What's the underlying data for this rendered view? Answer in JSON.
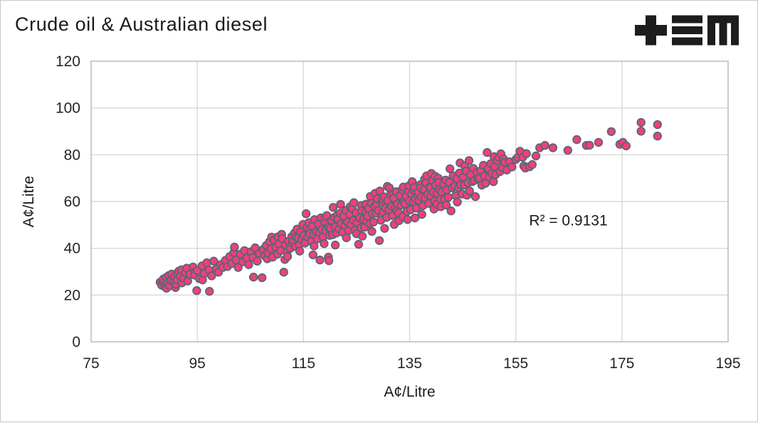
{
  "title": "Crude oil & Australian diesel",
  "logo": {
    "name": "tem-logo",
    "color": "#1d1d1b"
  },
  "chart_data": {
    "type": "scatter",
    "title": "Crude oil & Australian diesel",
    "xlabel": "A¢/Litre",
    "ylabel": "A¢/Litre",
    "xlim": [
      75,
      195
    ],
    "ylim": [
      0,
      120
    ],
    "xticks": [
      75,
      95,
      115,
      135,
      155,
      175,
      195
    ],
    "yticks": [
      0,
      20,
      40,
      60,
      80,
      100,
      120
    ],
    "grid": true,
    "legend": "none",
    "annotation": {
      "text": "R² = 0.9131",
      "x": 164.9,
      "y": 52
    },
    "marker": {
      "fill": "#F23E80",
      "stroke": "#5B6670",
      "radius": 5.3,
      "stroke_width": 1.8
    },
    "colors": {
      "gridline": "#D9D9D9",
      "plot_border": "#BFBFBF",
      "tick_text": "#262626",
      "axis_title_text": "#1A1A1A"
    },
    "points": [
      [
        88.0,
        25.5
      ],
      [
        88.3,
        24.2
      ],
      [
        88.5,
        25.9
      ],
      [
        88.6,
        26.8
      ],
      [
        88.9,
        23.5
      ],
      [
        89.1,
        27.5
      ],
      [
        89.2,
        22.9
      ],
      [
        89.4,
        25.0
      ],
      [
        89.6,
        28.3
      ],
      [
        89.8,
        24.0
      ],
      [
        90.0,
        26.2
      ],
      [
        90.2,
        29.0
      ],
      [
        90.5,
        25.8
      ],
      [
        90.8,
        27.9
      ],
      [
        90.9,
        23.2
      ],
      [
        91.0,
        24.6
      ],
      [
        91.2,
        26.5
      ],
      [
        91.3,
        29.1
      ],
      [
        91.5,
        30.2
      ],
      [
        91.8,
        28.0
      ],
      [
        92.0,
        30.8
      ],
      [
        92.1,
        25.2
      ],
      [
        92.4,
        27.2
      ],
      [
        92.8,
        29.5
      ],
      [
        93.0,
        31.5
      ],
      [
        93.2,
        26.0
      ],
      [
        93.6,
        28.8
      ],
      [
        94.2,
        32.0
      ],
      [
        94.6,
        30.0
      ],
      [
        94.9,
        21.9
      ],
      [
        97.3,
        21.6
      ],
      [
        94.5,
        28.5
      ],
      [
        95.0,
        30.5
      ],
      [
        95.4,
        27.0
      ],
      [
        95.9,
        32.5
      ],
      [
        96.0,
        26.5
      ],
      [
        96.3,
        29.2
      ],
      [
        96.8,
        33.8
      ],
      [
        97.2,
        30.8
      ],
      [
        97.7,
        28.2
      ],
      [
        98.1,
        34.5
      ],
      [
        98.6,
        31.2
      ],
      [
        99.0,
        29.8
      ],
      [
        99.4,
        33.0
      ],
      [
        99.8,
        31.8
      ],
      [
        100.3,
        34.8
      ],
      [
        100.7,
        32.2
      ],
      [
        101.1,
        36.5
      ],
      [
        101.5,
        33.5
      ],
      [
        101.9,
        38.2
      ],
      [
        102.0,
        40.5
      ],
      [
        102.3,
        35.0
      ],
      [
        102.7,
        31.8
      ],
      [
        103.1,
        37.5
      ],
      [
        103.5,
        34.2
      ],
      [
        103.9,
        39.0
      ],
      [
        104.3,
        35.8
      ],
      [
        104.7,
        33.0
      ],
      [
        105.1,
        38.5
      ],
      [
        105.5,
        36.0
      ],
      [
        105.6,
        27.7
      ],
      [
        105.9,
        40.2
      ],
      [
        106.3,
        34.5
      ],
      [
        106.7,
        37.8
      ],
      [
        107.2,
        27.4
      ],
      [
        107.4,
        39.5
      ],
      [
        107.7,
        36.8
      ],
      [
        108.0,
        41.2
      ],
      [
        108.2,
        35.5
      ],
      [
        108.3,
        38.0
      ],
      [
        108.6,
        42.8
      ],
      [
        108.9,
        39.8
      ],
      [
        109.0,
        44.8
      ],
      [
        109.2,
        36.2
      ],
      [
        109.5,
        43.5
      ],
      [
        109.8,
        40.5
      ],
      [
        110.1,
        37.5
      ],
      [
        110.2,
        44.9
      ],
      [
        110.4,
        42.0
      ],
      [
        110.7,
        39.0
      ],
      [
        110.9,
        46.0
      ],
      [
        111.0,
        44.2
      ],
      [
        111.3,
        29.8
      ],
      [
        111.5,
        35.2
      ],
      [
        111.6,
        41.5
      ],
      [
        111.9,
        38.5
      ],
      [
        112.0,
        36.5
      ],
      [
        112.2,
        43.0
      ],
      [
        112.5,
        40.0
      ],
      [
        112.8,
        45.0
      ],
      [
        112.9,
        42.2
      ],
      [
        113.1,
        43.2
      ],
      [
        113.3,
        46.5
      ],
      [
        113.5,
        40.8
      ],
      [
        113.6,
        44.9
      ],
      [
        113.8,
        48.2
      ],
      [
        114.0,
        44.5
      ],
      [
        114.2,
        41.5
      ],
      [
        114.3,
        38.8
      ],
      [
        114.5,
        47.0
      ],
      [
        114.7,
        43.8
      ],
      [
        114.9,
        50.2
      ],
      [
        115.1,
        45.5
      ],
      [
        115.3,
        42.2
      ],
      [
        115.5,
        54.8
      ],
      [
        115.6,
        48.8
      ],
      [
        115.8,
        44.8
      ],
      [
        116.0,
        51.0
      ],
      [
        116.1,
        47.9
      ],
      [
        116.2,
        46.2
      ],
      [
        116.5,
        43.0
      ],
      [
        116.7,
        49.5
      ],
      [
        116.8,
        37.2
      ],
      [
        116.9,
        45.8
      ],
      [
        117.0,
        41.0
      ],
      [
        117.1,
        52.3
      ],
      [
        117.4,
        47.2
      ],
      [
        117.6,
        44.0
      ],
      [
        117.8,
        50.5
      ],
      [
        118.0,
        46.8
      ],
      [
        118.1,
        35.0
      ],
      [
        118.3,
        53.0
      ],
      [
        118.5,
        48.0
      ],
      [
        118.7,
        44.8
      ],
      [
        118.9,
        42.0
      ],
      [
        119.0,
        51.5
      ],
      [
        119.1,
        53.2
      ],
      [
        119.2,
        47.5
      ],
      [
        119.4,
        54.0
      ],
      [
        119.7,
        49.0
      ],
      [
        119.7,
        36.2
      ],
      [
        119.8,
        34.7
      ],
      [
        119.9,
        45.5
      ],
      [
        120.1,
        48.5
      ],
      [
        120.3,
        51.8
      ],
      [
        120.5,
        45.8
      ],
      [
        120.6,
        57.5
      ],
      [
        120.8,
        53.2
      ],
      [
        121.0,
        49.2
      ],
      [
        121.0,
        41.4
      ],
      [
        121.2,
        46.5
      ],
      [
        121.4,
        54.2
      ],
      [
        121.5,
        52.5
      ],
      [
        121.7,
        48.2
      ],
      [
        121.9,
        55.0
      ],
      [
        122.0,
        58.8
      ],
      [
        122.1,
        50.5
      ],
      [
        122.4,
        46.8
      ],
      [
        122.6,
        53.8
      ],
      [
        122.8,
        49.8
      ],
      [
        123.0,
        56.2
      ],
      [
        123.1,
        44.5
      ],
      [
        123.3,
        51.2
      ],
      [
        123.5,
        47.5
      ],
      [
        123.7,
        54.5
      ],
      [
        123.8,
        57.8
      ],
      [
        124.0,
        50.2
      ],
      [
        124.2,
        57.0
      ],
      [
        124.4,
        52.0
      ],
      [
        124.5,
        59.5
      ],
      [
        124.7,
        47.8
      ],
      [
        124.9,
        55.2
      ],
      [
        125.0,
        46.2
      ],
      [
        125.1,
        51.0
      ],
      [
        125.4,
        41.7
      ],
      [
        125.6,
        53.0
      ],
      [
        125.8,
        48.8
      ],
      [
        125.9,
        58.3
      ],
      [
        126.0,
        56.0
      ],
      [
        126.1,
        45.2
      ],
      [
        126.3,
        52.2
      ],
      [
        126.5,
        49.0
      ],
      [
        126.7,
        55.5
      ],
      [
        126.8,
        58.9
      ],
      [
        126.9,
        51.5
      ],
      [
        127.1,
        53.8
      ],
      [
        127.3,
        57.0
      ],
      [
        127.5,
        50.5
      ],
      [
        127.6,
        62.2
      ],
      [
        127.8,
        59.2
      ],
      [
        127.9,
        47.2
      ],
      [
        128.0,
        54.8
      ],
      [
        128.2,
        51.2
      ],
      [
        128.4,
        58.0
      ],
      [
        128.5,
        63.5
      ],
      [
        128.7,
        55.0
      ],
      [
        128.8,
        58.9
      ],
      [
        128.9,
        61.2
      ],
      [
        129.1,
        56.2
      ],
      [
        129.3,
        43.3
      ],
      [
        129.4,
        64.5
      ],
      [
        129.6,
        52.0
      ],
      [
        129.8,
        59.8
      ],
      [
        129.9,
        61.0
      ],
      [
        130.0,
        55.5
      ],
      [
        130.2,
        62.0
      ],
      [
        130.3,
        48.5
      ],
      [
        130.5,
        57.2
      ],
      [
        130.7,
        53.2
      ],
      [
        130.8,
        66.5
      ],
      [
        130.9,
        60.5
      ],
      [
        131.1,
        56.5
      ],
      [
        131.2,
        65.8
      ],
      [
        131.4,
        63.0
      ],
      [
        131.6,
        58.0
      ],
      [
        131.8,
        54.0
      ],
      [
        131.9,
        62.9
      ],
      [
        132.0,
        61.5
      ],
      [
        132.1,
        50.2
      ],
      [
        132.3,
        57.5
      ],
      [
        132.5,
        64.2
      ],
      [
        132.6,
        56.1
      ],
      [
        132.7,
        59.0
      ],
      [
        132.9,
        55.2
      ],
      [
        133.0,
        51.8
      ],
      [
        133.2,
        62.5
      ],
      [
        133.4,
        58.5
      ],
      [
        133.6,
        65.0
      ],
      [
        133.7,
        53.5
      ],
      [
        133.8,
        66.2
      ],
      [
        133.9,
        60.0
      ],
      [
        134.1,
        59.0
      ],
      [
        134.3,
        62.2
      ],
      [
        134.5,
        55.8
      ],
      [
        134.6,
        52.3
      ],
      [
        134.8,
        64.5
      ],
      [
        134.9,
        66.8
      ],
      [
        135.0,
        60.2
      ],
      [
        135.2,
        56.5
      ],
      [
        135.4,
        63.2
      ],
      [
        135.5,
        68.5
      ],
      [
        135.7,
        59.8
      ],
      [
        135.8,
        64.8
      ],
      [
        135.9,
        66.0
      ],
      [
        136.0,
        53.0
      ],
      [
        136.1,
        61.2
      ],
      [
        136.3,
        57.2
      ],
      [
        136.5,
        62.8
      ],
      [
        136.6,
        64.0
      ],
      [
        136.8,
        60.5
      ],
      [
        137.0,
        67.2
      ],
      [
        137.1,
        65.9
      ],
      [
        137.2,
        62.0
      ],
      [
        137.3,
        54.5
      ],
      [
        137.5,
        58.2
      ],
      [
        137.7,
        65.2
      ],
      [
        137.8,
        69.5
      ],
      [
        137.9,
        61.5
      ],
      [
        138.1,
        68.0
      ],
      [
        138.2,
        71.0
      ],
      [
        138.4,
        63.0
      ],
      [
        138.6,
        59.2
      ],
      [
        138.8,
        66.2
      ],
      [
        138.9,
        65.9
      ],
      [
        139.0,
        62.5
      ],
      [
        139.1,
        72.0
      ],
      [
        139.3,
        69.0
      ],
      [
        139.5,
        64.0
      ],
      [
        139.6,
        56.8
      ],
      [
        139.7,
        60.2
      ],
      [
        139.8,
        70.8
      ],
      [
        139.9,
        67.0
      ],
      [
        140.1,
        58.9
      ],
      [
        140.2,
        63.5
      ],
      [
        140.4,
        70.0
      ],
      [
        140.5,
        68.2
      ],
      [
        140.6,
        65.0
      ],
      [
        140.8,
        61.0
      ],
      [
        140.9,
        57.8
      ],
      [
        141.1,
        64.2
      ],
      [
        141.4,
        67.5
      ],
      [
        141.6,
        61.0
      ],
      [
        141.8,
        69.2
      ],
      [
        141.9,
        58.5
      ],
      [
        142.0,
        65.0
      ],
      [
        142.3,
        61.8
      ],
      [
        142.5,
        68.2
      ],
      [
        142.6,
        74.0
      ],
      [
        142.8,
        56.0
      ],
      [
        143.0,
        65.8
      ],
      [
        143.2,
        71.0
      ],
      [
        143.5,
        66.5
      ],
      [
        143.7,
        62.5
      ],
      [
        143.9,
        69.8
      ],
      [
        144.0,
        59.8
      ],
      [
        144.2,
        66.0
      ],
      [
        144.4,
        72.2
      ],
      [
        144.5,
        76.5
      ],
      [
        144.6,
        67.2
      ],
      [
        144.9,
        63.2
      ],
      [
        145.1,
        70.5
      ],
      [
        145.3,
        67.0
      ],
      [
        145.4,
        75.2
      ],
      [
        145.6,
        73.0
      ],
      [
        145.8,
        62.7
      ],
      [
        146.0,
        68.0
      ],
      [
        146.2,
        77.5
      ],
      [
        146.3,
        64.5
      ],
      [
        146.5,
        71.5
      ],
      [
        146.8,
        68.5
      ],
      [
        147.0,
        74.2
      ],
      [
        147.2,
        69.0
      ],
      [
        147.4,
        62.1
      ],
      [
        147.7,
        72.5
      ],
      [
        147.9,
        69.5
      ],
      [
        148.1,
        70.0
      ],
      [
        148.4,
        73.2
      ],
      [
        148.6,
        67.0
      ],
      [
        148.9,
        75.5
      ],
      [
        149.1,
        71.0
      ],
      [
        149.3,
        67.8
      ],
      [
        149.6,
        81.0
      ],
      [
        149.8,
        74.0
      ],
      [
        150.0,
        70.5
      ],
      [
        150.3,
        76.2
      ],
      [
        150.5,
        72.0
      ],
      [
        150.8,
        68.5
      ],
      [
        150.9,
        79.2
      ],
      [
        151.0,
        75.0
      ],
      [
        151.2,
        71.5
      ],
      [
        151.5,
        77.5
      ],
      [
        151.8,
        78.9
      ],
      [
        152.0,
        72.8
      ],
      [
        152.2,
        80.4
      ],
      [
        152.5,
        74.5
      ],
      [
        152.7,
        78.2
      ],
      [
        152.9,
        76.8
      ],
      [
        153.3,
        73.5
      ],
      [
        153.8,
        77.0
      ],
      [
        154.3,
        74.8
      ],
      [
        155.0,
        78.0
      ],
      [
        155.4,
        78.9
      ],
      [
        155.8,
        81.5
      ],
      [
        156.3,
        78.9
      ],
      [
        156.5,
        75.2
      ],
      [
        156.8,
        74.3
      ],
      [
        157.0,
        80.5
      ],
      [
        157.6,
        74.9
      ],
      [
        158.1,
        75.8
      ],
      [
        158.8,
        79.5
      ],
      [
        159.5,
        83.0
      ],
      [
        160.5,
        84.0
      ],
      [
        162.0,
        83.0
      ],
      [
        164.8,
        81.9
      ],
      [
        166.5,
        86.5
      ],
      [
        168.3,
        84.0
      ],
      [
        168.9,
        84.1
      ],
      [
        170.6,
        85.3
      ],
      [
        173.0,
        89.9
      ],
      [
        174.6,
        84.5
      ],
      [
        175.2,
        85.3
      ],
      [
        175.8,
        83.8
      ],
      [
        178.6,
        93.8
      ],
      [
        178.6,
        90.1
      ],
      [
        181.7,
        92.9
      ],
      [
        181.7,
        88.0
      ]
    ]
  }
}
